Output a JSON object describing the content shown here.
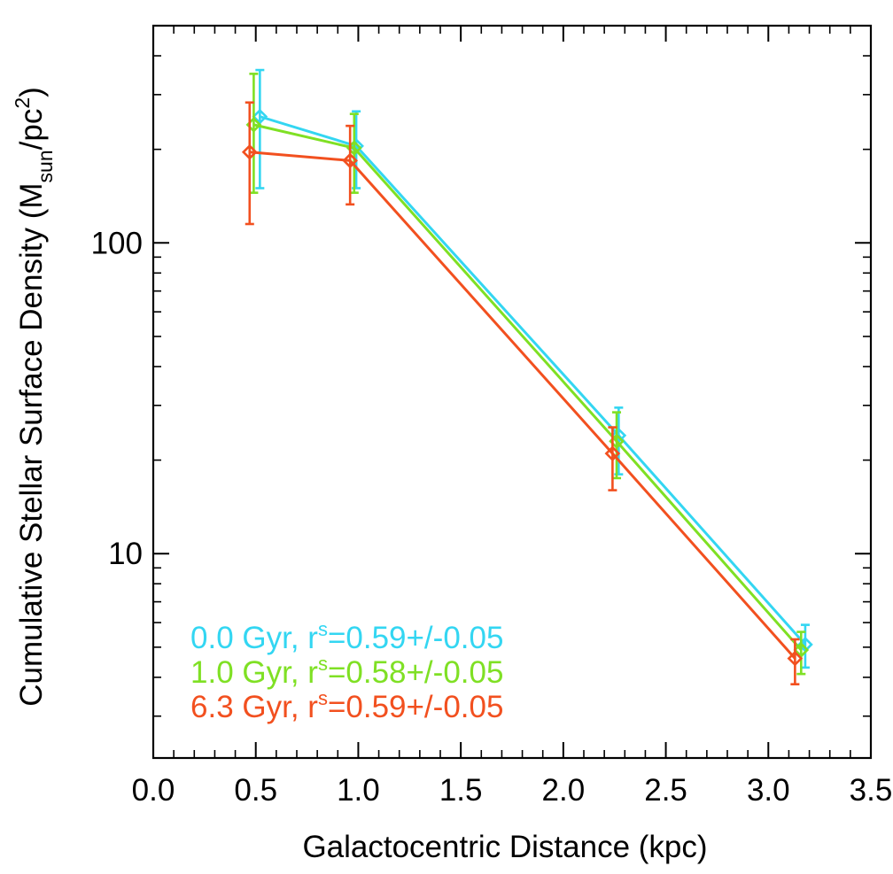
{
  "chart_data": {
    "type": "line",
    "xlabel": "Galactocentric Distance (kpc)",
    "ylabel": {
      "prefix": "Cumulative Stellar Surface Density (M",
      "mass_subscript": "sun",
      "mid": "/pc",
      "area_superscript": "2",
      "suffix": ")"
    },
    "xlim": [
      0.0,
      3.5
    ],
    "ylim": [
      2.2,
      500
    ],
    "y_scale": "log",
    "x_tick_labels": [
      "0.0",
      "0.5",
      "1.0",
      "1.5",
      "2.0",
      "2.5",
      "3.0",
      "3.5"
    ],
    "x_tick_values": [
      0.0,
      0.5,
      1.0,
      1.5,
      2.0,
      2.5,
      3.0,
      3.5
    ],
    "y_tick_labels": [
      "10",
      "100"
    ],
    "y_tick_values": [
      10,
      100
    ],
    "grid": false,
    "legend_position": "bottom-left",
    "series": [
      {
        "legend_main": "0.0 Gyr, r",
        "legend_subscript": "s",
        "legend_value": "=0.59+/-0.05",
        "color": "#33d6f2",
        "x": [
          0.52,
          0.99,
          2.27,
          3.18
        ],
        "y": [
          255,
          205,
          24,
          5.1
        ],
        "yerr_low": [
          150,
          150,
          18,
          4.3
        ],
        "yerr_high": [
          360,
          265,
          29.5,
          5.9
        ]
      },
      {
        "legend_main": "1.0 Gyr, r",
        "legend_subscript": "s",
        "legend_value": "=0.58+/-0.05",
        "color": "#7fe024",
        "x": [
          0.49,
          0.98,
          2.26,
          3.16
        ],
        "y": [
          240,
          202,
          23,
          4.9
        ],
        "yerr_low": [
          145,
          145,
          17.5,
          4.1
        ],
        "yerr_high": [
          350,
          260,
          28.5,
          5.6
        ]
      },
      {
        "legend_main": "6.3 Gyr, r",
        "legend_subscript": "s",
        "legend_value": "=0.59+/-0.05",
        "color": "#f2501f",
        "x": [
          0.47,
          0.96,
          2.24,
          3.13
        ],
        "y": [
          196,
          184,
          21,
          4.6
        ],
        "yerr_low": [
          115,
          133,
          16,
          3.8
        ],
        "yerr_high": [
          283,
          238,
          25.5,
          5.3
        ]
      }
    ]
  }
}
